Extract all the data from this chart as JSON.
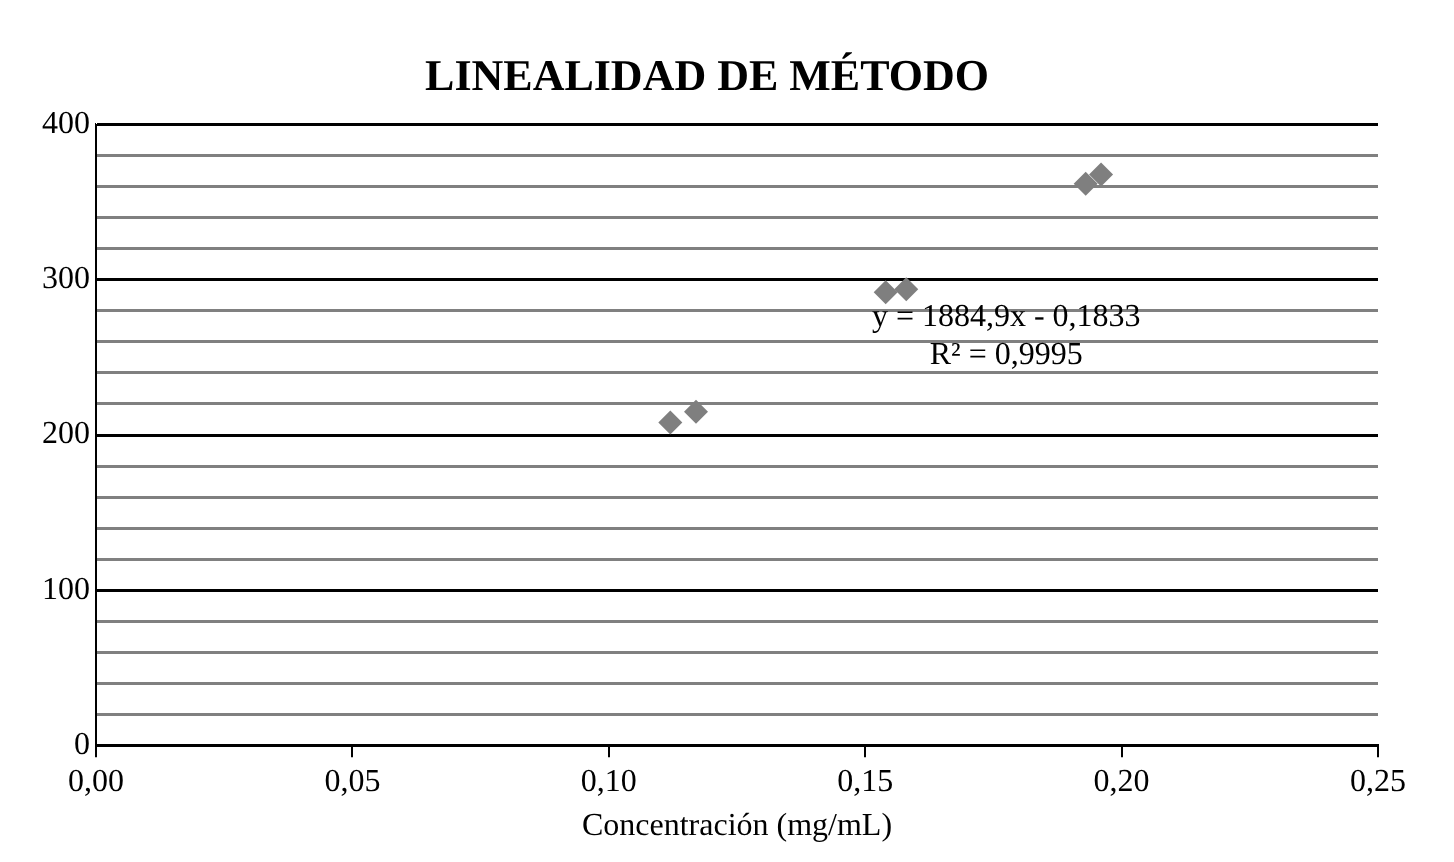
{
  "chart_data": {
    "type": "scatter",
    "title": "LINEALIDAD DE MÉTODO",
    "xlabel": "Concentración (mg/mL)",
    "x": [
      0.112,
      0.117,
      0.154,
      0.158,
      0.193,
      0.196
    ],
    "values": [
      208,
      215,
      292,
      294,
      362,
      368
    ],
    "color": "#7f7f7f",
    "marker": "diamond",
    "xlim": [
      0,
      0.25
    ],
    "xticks": [
      {
        "value": 0,
        "label": "0,00"
      },
      {
        "value": 0.05,
        "label": "0,05"
      },
      {
        "value": 0.1,
        "label": "0,10"
      },
      {
        "value": 0.15,
        "label": "0,15"
      },
      {
        "value": 0.2,
        "label": "0,20"
      },
      {
        "value": 0.25,
        "label": "0,25"
      }
    ],
    "ylim": [
      0,
      400
    ],
    "yticks": [
      0,
      {
        "value": 20,
        "label": null
      },
      {
        "value": 40,
        "label": null
      },
      {
        "value": 60,
        "label": null
      },
      {
        "value": 80,
        "label": null
      },
      100,
      {
        "value": 120,
        "label": null
      },
      {
        "value": 140,
        "label": null
      },
      {
        "value": 160,
        "label": null
      },
      {
        "value": 180,
        "label": null
      },
      200,
      {
        "value": 220,
        "label": null
      },
      {
        "value": 240,
        "label": null
      },
      {
        "value": 260,
        "label": null
      },
      {
        "value": 280,
        "label": null
      },
      300,
      {
        "value": 320,
        "label": null
      },
      {
        "value": 340,
        "label": null
      },
      {
        "value": 360,
        "label": null
      },
      {
        "value": 380,
        "label": null
      },
      400
    ],
    "grid": "y",
    "legend": false,
    "annotations": [
      "y = 1884,9x - 0,1833",
      "R² = 0,9995"
    ]
  }
}
